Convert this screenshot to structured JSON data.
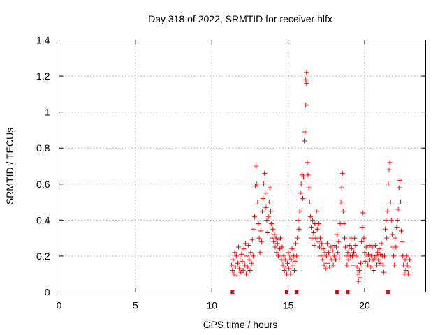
{
  "chart_data": {
    "type": "scatter",
    "title": "Day 318 of 2022, SRMTID for receiver hlfx",
    "xlabel": "GPS time / hours",
    "ylabel": "SRMTID / TECUs",
    "xlim": [
      0,
      24
    ],
    "ylim": [
      0,
      1.4
    ],
    "xticks": [
      "0",
      "5",
      "10",
      "15",
      "20"
    ],
    "xtick_values": [
      0,
      5,
      10,
      15,
      20
    ],
    "yticks": [
      "0",
      "0.2",
      "0.4",
      "0.6",
      "0.8",
      "1",
      "1.2",
      "1.4"
    ],
    "ytick_values": [
      0,
      0.2,
      0.4,
      0.6,
      0.8,
      1.0,
      1.2,
      1.4
    ],
    "grid": true,
    "legend": "none",
    "marker": "plus",
    "color": "#ff0000",
    "series": [
      {
        "name": "SRMTID",
        "points": [
          [
            11.3,
            0.15
          ],
          [
            11.35,
            0.12
          ],
          [
            11.4,
            0.18
          ],
          [
            11.45,
            0.1
          ],
          [
            11.5,
            0.22
          ],
          [
            11.55,
            0.14
          ],
          [
            11.6,
            0.2
          ],
          [
            11.65,
            0.09
          ],
          [
            11.7,
            0.16
          ],
          [
            11.75,
            0.25
          ],
          [
            11.8,
            0.13
          ],
          [
            11.85,
            0.19
          ],
          [
            11.9,
            0.11
          ],
          [
            11.95,
            0.21
          ],
          [
            12.0,
            0.17
          ],
          [
            12.05,
            0.12
          ],
          [
            12.1,
            0.24
          ],
          [
            12.15,
            0.15
          ],
          [
            12.2,
            0.27
          ],
          [
            12.25,
            0.1
          ],
          [
            12.3,
            0.2
          ],
          [
            12.35,
            0.14
          ],
          [
            12.4,
            0.26
          ],
          [
            12.45,
            0.18
          ],
          [
            12.5,
            0.12
          ],
          [
            12.55,
            0.22
          ],
          [
            12.6,
            0.16
          ],
          [
            12.65,
            0.29
          ],
          [
            12.7,
            0.2
          ],
          [
            12.75,
            0.35
          ],
          [
            12.8,
            0.42
          ],
          [
            12.85,
            0.59
          ],
          [
            12.9,
            0.7
          ],
          [
            12.95,
            0.6
          ],
          [
            13.0,
            0.5
          ],
          [
            13.05,
            0.38
          ],
          [
            13.1,
            0.3
          ],
          [
            13.15,
            0.22
          ],
          [
            13.2,
            0.34
          ],
          [
            13.25,
            0.28
          ],
          [
            13.3,
            0.45
          ],
          [
            13.35,
            0.52
          ],
          [
            13.4,
            0.6
          ],
          [
            13.45,
            0.66
          ],
          [
            13.5,
            0.55
          ],
          [
            13.55,
            0.47
          ],
          [
            13.6,
            0.4
          ],
          [
            13.65,
            0.33
          ],
          [
            13.7,
            0.42
          ],
          [
            13.75,
            0.5
          ],
          [
            13.8,
            0.58
          ],
          [
            13.85,
            0.45
          ],
          [
            13.9,
            0.38
          ],
          [
            13.95,
            0.3
          ],
          [
            14.0,
            0.35
          ],
          [
            14.05,
            0.28
          ],
          [
            14.1,
            0.32
          ],
          [
            14.15,
            0.25
          ],
          [
            14.2,
            0.3
          ],
          [
            14.25,
            0.22
          ],
          [
            14.3,
            0.27
          ],
          [
            14.35,
            0.2
          ],
          [
            14.4,
            0.29
          ],
          [
            14.45,
            0.24
          ],
          [
            14.5,
            0.3
          ],
          [
            14.55,
            0.18
          ],
          [
            14.6,
            0.25
          ],
          [
            14.65,
            0.15
          ],
          [
            14.7,
            0.2
          ],
          [
            14.75,
            0.12
          ],
          [
            14.8,
            0.18
          ],
          [
            14.85,
            0.14
          ],
          [
            14.9,
            0.1
          ],
          [
            14.95,
            0.16
          ],
          [
            15.0,
            0.22
          ],
          [
            15.05,
            0.13
          ],
          [
            15.1,
            0.19
          ],
          [
            15.15,
            0.1
          ],
          [
            15.2,
            0.18
          ],
          [
            15.25,
            0.24
          ],
          [
            15.3,
            0.15
          ],
          [
            15.35,
            0.2
          ],
          [
            15.4,
            0.12
          ],
          [
            15.45,
            0.17
          ],
          [
            15.5,
            0.27
          ],
          [
            15.55,
            0.2
          ],
          [
            15.6,
            0.3
          ],
          [
            15.65,
            0.4
          ],
          [
            15.7,
            0.35
          ],
          [
            15.75,
            0.45
          ],
          [
            15.8,
            0.55
          ],
          [
            15.85,
            0.6
          ],
          [
            15.9,
            0.65
          ],
          [
            15.95,
            0.52
          ],
          [
            16.0,
            0.64
          ],
          [
            16.05,
            0.84
          ],
          [
            16.1,
            0.89
          ],
          [
            16.15,
            1.04
          ],
          [
            16.15,
            1.18
          ],
          [
            16.2,
            1.22
          ],
          [
            16.2,
            1.16
          ],
          [
            16.25,
            0.72
          ],
          [
            16.3,
            0.65
          ],
          [
            16.35,
            0.58
          ],
          [
            16.4,
            0.5
          ],
          [
            16.45,
            0.42
          ],
          [
            16.5,
            0.36
          ],
          [
            16.55,
            0.3
          ],
          [
            16.6,
            0.4
          ],
          [
            16.65,
            0.33
          ],
          [
            16.7,
            0.26
          ],
          [
            16.75,
            0.38
          ],
          [
            16.8,
            0.3
          ],
          [
            16.85,
            0.45
          ],
          [
            16.9,
            0.35
          ],
          [
            16.95,
            0.28
          ],
          [
            17.0,
            0.38
          ],
          [
            17.05,
            0.25
          ],
          [
            17.1,
            0.3
          ],
          [
            17.15,
            0.2
          ],
          [
            17.2,
            0.27
          ],
          [
            17.25,
            0.18
          ],
          [
            17.3,
            0.24
          ],
          [
            17.35,
            0.15
          ],
          [
            17.4,
            0.22
          ],
          [
            17.45,
            0.13
          ],
          [
            17.5,
            0.2
          ],
          [
            17.55,
            0.27
          ],
          [
            17.6,
            0.16
          ],
          [
            17.65,
            0.22
          ],
          [
            17.7,
            0.14
          ],
          [
            17.75,
            0.19
          ],
          [
            17.8,
            0.25
          ],
          [
            17.85,
            0.18
          ],
          [
            17.9,
            0.23
          ],
          [
            17.95,
            0.15
          ],
          [
            18.0,
            0.2
          ],
          [
            18.05,
            0.26
          ],
          [
            18.1,
            0.18
          ],
          [
            18.15,
            0.25
          ],
          [
            18.2,
            0.32
          ],
          [
            18.25,
            0.22
          ],
          [
            18.3,
            0.28
          ],
          [
            18.35,
            0.19
          ],
          [
            18.4,
            0.38
          ],
          [
            18.45,
            0.5
          ],
          [
            18.5,
            0.58
          ],
          [
            18.55,
            0.66
          ],
          [
            18.6,
            0.45
          ],
          [
            18.65,
            0.38
          ],
          [
            18.7,
            0.3
          ],
          [
            18.75,
            0.25
          ],
          [
            18.8,
            0.2
          ],
          [
            18.85,
            0.15
          ],
          [
            18.9,
            0.22
          ],
          [
            18.95,
            0.18
          ],
          [
            19.0,
            0.26
          ],
          [
            19.05,
            0.2
          ],
          [
            19.1,
            0.3
          ],
          [
            19.15,
            0.24
          ],
          [
            19.2,
            0.2
          ],
          [
            19.25,
            0.15
          ],
          [
            19.3,
            0.22
          ],
          [
            19.35,
            0.3
          ],
          [
            19.4,
            0.26
          ],
          [
            19.45,
            0.2
          ],
          [
            19.5,
            0.14
          ],
          [
            19.55,
            0.1
          ],
          [
            19.6,
            0.06
          ],
          [
            19.65,
            0.12
          ],
          [
            19.7,
            0.08
          ],
          [
            19.75,
            0.16
          ],
          [
            19.8,
            0.28
          ],
          [
            19.85,
            0.36
          ],
          [
            19.9,
            0.44
          ],
          [
            19.95,
            0.3
          ],
          [
            20.0,
            0.22
          ],
          [
            20.05,
            0.17
          ],
          [
            20.1,
            0.25
          ],
          [
            20.15,
            0.2
          ],
          [
            20.2,
            0.15
          ],
          [
            20.25,
            0.21
          ],
          [
            20.3,
            0.26
          ],
          [
            20.35,
            0.18
          ],
          [
            20.4,
            0.14
          ],
          [
            20.45,
            0.2
          ],
          [
            20.5,
            0.25
          ],
          [
            20.55,
            0.18
          ],
          [
            20.6,
            0.12
          ],
          [
            20.65,
            0.19
          ],
          [
            20.7,
            0.26
          ],
          [
            20.75,
            0.2
          ],
          [
            20.8,
            0.15
          ],
          [
            20.85,
            0.22
          ],
          [
            20.9,
            0.18
          ],
          [
            20.95,
            0.24
          ],
          [
            21.0,
            0.16
          ],
          [
            21.05,
            0.21
          ],
          [
            21.1,
            0.27
          ],
          [
            21.15,
            0.2
          ],
          [
            21.2,
            0.15
          ],
          [
            21.25,
            0.11
          ],
          [
            21.3,
            0.2
          ],
          [
            21.35,
            0.35
          ],
          [
            21.4,
            0.4
          ],
          [
            21.45,
            0.3
          ],
          [
            21.5,
            0.45
          ],
          [
            21.55,
            0.6
          ],
          [
            21.6,
            0.68
          ],
          [
            21.65,
            0.72
          ],
          [
            21.7,
            0.5
          ],
          [
            21.75,
            0.4
          ],
          [
            21.8,
            0.32
          ],
          [
            21.85,
            0.25
          ],
          [
            21.9,
            0.2
          ],
          [
            21.95,
            0.15
          ],
          [
            22.0,
            0.3
          ],
          [
            22.05,
            0.25
          ],
          [
            22.1,
            0.36
          ],
          [
            22.15,
            0.4
          ],
          [
            22.2,
            0.46
          ],
          [
            22.25,
            0.58
          ],
          [
            22.3,
            0.62
          ],
          [
            22.35,
            0.5
          ],
          [
            22.4,
            0.34
          ],
          [
            22.45,
            0.28
          ],
          [
            22.5,
            0.2
          ],
          [
            22.55,
            0.15
          ],
          [
            22.6,
            0.1
          ],
          [
            22.65,
            0.18
          ],
          [
            22.7,
            0.12
          ],
          [
            22.75,
            0.2
          ],
          [
            22.8,
            0.15
          ],
          [
            22.85,
            0.1
          ],
          [
            22.9,
            0.14
          ],
          [
            22.95,
            0.18
          ]
        ],
        "zero_points": [
          11.35,
          14.9,
          15.55,
          18.2,
          18.9,
          21.5,
          21.55
        ]
      }
    ]
  }
}
